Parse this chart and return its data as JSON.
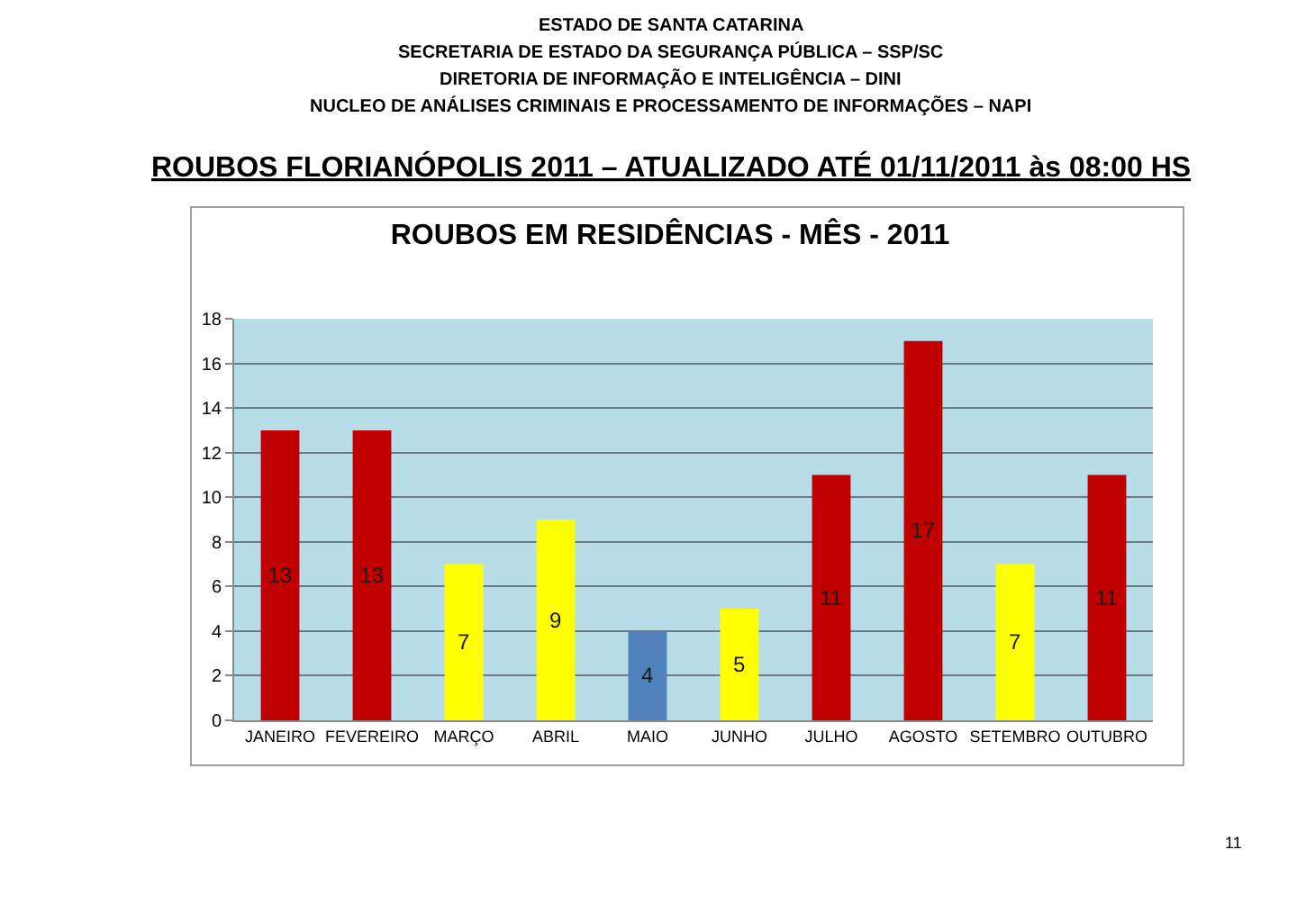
{
  "chart_data": {
    "type": "bar",
    "title": "ROUBOS EM RESIDÊNCIAS - MÊS - 2011",
    "categories": [
      "JANEIRO",
      "FEVEREIRO",
      "MARÇO",
      "ABRIL",
      "MAIO",
      "JUNHO",
      "JULHO",
      "AGOSTO",
      "SETEMBRO",
      "OUTUBRO"
    ],
    "values": [
      13,
      13,
      7,
      9,
      4,
      5,
      11,
      17,
      7,
      11
    ],
    "colors": [
      "#c00000",
      "#c00000",
      "#ffff00",
      "#ffff00",
      "#4f81bd",
      "#ffff00",
      "#c00000",
      "#c00000",
      "#ffff00",
      "#c00000"
    ],
    "ylim": [
      0,
      18
    ],
    "yticks": [
      0,
      2,
      4,
      6,
      8,
      10,
      12,
      14,
      16,
      18
    ],
    "grid": "y",
    "data_labels": true,
    "annotations": [
      "ESTADO DE SANTA CATARINA",
      "SECRETARIA DE ESTADO DA SEGURANÇA PÚBLICA – SSP/SC",
      "DIRETORIA DE INFORMAÇÃO E INTELIGÊNCIA – DINI",
      "NUCLEO DE ANÁLISES CRIMINAIS E PROCESSAMENTO DE INFORMAÇÕES – NAPI",
      "ROUBOS FLORIANÓPOLIS 2011 – ATUALIZADO ATÉ 01/11/2011 às 08:00 HS",
      "11"
    ]
  }
}
